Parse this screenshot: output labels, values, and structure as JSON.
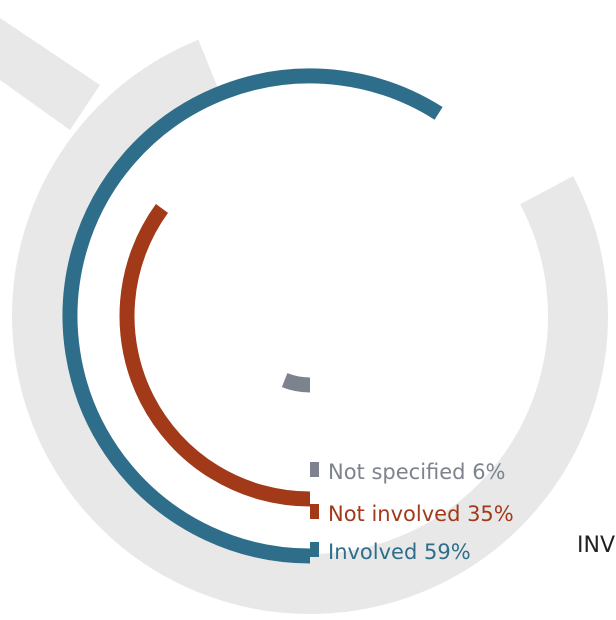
{
  "chart_data": {
    "type": "radial-bar",
    "title": "",
    "series": [
      {
        "name": "Not specified",
        "value": 6,
        "label": "Not specified 6%",
        "color": "#7d838e"
      },
      {
        "name": "Not involved",
        "value": 35,
        "label": "Not involved 35%",
        "color": "#a23a1a"
      },
      {
        "name": "Involved",
        "value": 59,
        "label": "Involved 59%",
        "color": "#2f6e8a"
      }
    ],
    "max": 100,
    "background_ring_color": "#e8e8e8"
  },
  "partial_label": "INV"
}
